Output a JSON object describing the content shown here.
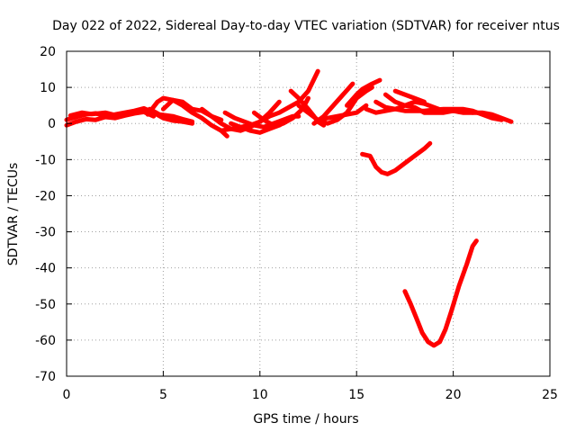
{
  "chart_data": {
    "type": "scatter",
    "title": "Day 022 of 2022, Sidereal Day-to-day VTEC variation (SDTVAR) for receiver ntus",
    "xlabel": "GPS time / hours",
    "ylabel": "SDTVAR / TECUs",
    "xlim": [
      0,
      25
    ],
    "ylim": [
      -70,
      20
    ],
    "xticks": [
      0,
      5,
      10,
      15,
      20,
      25
    ],
    "yticks": [
      -70,
      -60,
      -50,
      -40,
      -30,
      -20,
      -10,
      0,
      10,
      20
    ],
    "grid": true,
    "series_color": "#ff0000",
    "series": [
      {
        "name": "trace-1",
        "points": [
          [
            0,
            1
          ],
          [
            0.5,
            1.8
          ],
          [
            1,
            2.5
          ],
          [
            1.5,
            2.8
          ],
          [
            2,
            2.2
          ],
          [
            2.5,
            2.5
          ],
          [
            3,
            3
          ],
          [
            3.5,
            3.5
          ],
          [
            4,
            4.2
          ],
          [
            4.5,
            3
          ],
          [
            5,
            1.5
          ],
          [
            5.5,
            0.8
          ],
          [
            6,
            0.5
          ],
          [
            6.5,
            0
          ]
        ]
      },
      {
        "name": "trace-2",
        "points": [
          [
            0,
            -0.5
          ],
          [
            0.5,
            0.5
          ],
          [
            1,
            1.2
          ],
          [
            1.5,
            1
          ],
          [
            2,
            1.8
          ],
          [
            2.5,
            1.5
          ],
          [
            3,
            2.2
          ],
          [
            3.5,
            2.8
          ],
          [
            4,
            3.2
          ],
          [
            4.5,
            2
          ]
        ]
      },
      {
        "name": "trace-3",
        "points": [
          [
            0.2,
            2.2
          ],
          [
            0.8,
            3
          ],
          [
            1.3,
            2.6
          ],
          [
            2,
            3
          ],
          [
            2.6,
            2.2
          ],
          [
            3.2,
            2.5
          ]
        ]
      },
      {
        "name": "trace-4",
        "points": [
          [
            4.2,
            2.5
          ],
          [
            4.7,
            6
          ],
          [
            5,
            7
          ],
          [
            5.5,
            6.5
          ],
          [
            6,
            5
          ],
          [
            6.5,
            3
          ],
          [
            7,
            1.5
          ],
          [
            7.5,
            -0.5
          ],
          [
            8,
            -2
          ],
          [
            8.3,
            -3.5
          ]
        ]
      },
      {
        "name": "trace-5",
        "points": [
          [
            4.3,
            4
          ],
          [
            4.8,
            2.5
          ],
          [
            5.5,
            2
          ],
          [
            6,
            1.2
          ],
          [
            6.5,
            0.5
          ]
        ]
      },
      {
        "name": "trace-6",
        "points": [
          [
            5,
            4
          ],
          [
            5.5,
            6.5
          ],
          [
            6,
            6
          ],
          [
            6.5,
            4
          ],
          [
            7,
            3.5
          ],
          [
            7.5,
            2
          ],
          [
            8,
            1
          ]
        ]
      },
      {
        "name": "trace-7",
        "points": [
          [
            7,
            4
          ],
          [
            7.5,
            2
          ],
          [
            8,
            0
          ],
          [
            8.5,
            -1.5
          ],
          [
            9,
            -2
          ],
          [
            9.5,
            -1
          ],
          [
            10,
            0.5
          ],
          [
            10.5,
            3
          ],
          [
            11,
            6
          ]
        ]
      },
      {
        "name": "trace-8",
        "points": [
          [
            8,
            -2
          ],
          [
            8.5,
            -1.5
          ],
          [
            9,
            -1
          ],
          [
            9.5,
            -0.5
          ],
          [
            10,
            0.5
          ],
          [
            10.5,
            2
          ],
          [
            11,
            3
          ],
          [
            11.5,
            4.5
          ],
          [
            12,
            6
          ],
          [
            12.5,
            9
          ],
          [
            13,
            14.5
          ]
        ]
      },
      {
        "name": "trace-9",
        "points": [
          [
            8.2,
            3
          ],
          [
            8.7,
            1.5
          ],
          [
            9.2,
            0.5
          ],
          [
            9.7,
            -0.5
          ],
          [
            10.2,
            -1
          ],
          [
            10.7,
            0
          ],
          [
            11.2,
            1
          ],
          [
            11.7,
            2
          ],
          [
            12,
            2
          ]
        ]
      },
      {
        "name": "trace-10",
        "points": [
          [
            8.5,
            0
          ],
          [
            9,
            -1
          ],
          [
            9.5,
            -2
          ],
          [
            10,
            -2.5
          ],
          [
            10.5,
            -1.5
          ],
          [
            11,
            -0.5
          ],
          [
            11.5,
            1
          ]
        ]
      },
      {
        "name": "trace-11",
        "points": [
          [
            9.7,
            3
          ],
          [
            10.2,
            1
          ],
          [
            10.7,
            -0.5
          ],
          [
            11.2,
            0
          ],
          [
            11.7,
            1.5
          ],
          [
            12.2,
            4
          ],
          [
            12.5,
            7
          ]
        ]
      },
      {
        "name": "trace-12",
        "points": [
          [
            11.6,
            9
          ],
          [
            12,
            7
          ],
          [
            12.5,
            4
          ],
          [
            12.8,
            2
          ],
          [
            13,
            0.5
          ],
          [
            13.3,
            -0.5
          ]
        ]
      },
      {
        "name": "trace-13",
        "points": [
          [
            12,
            5
          ],
          [
            12.5,
            3
          ],
          [
            13,
            1
          ],
          [
            13.5,
            0
          ],
          [
            14,
            1
          ],
          [
            14.5,
            3
          ],
          [
            15,
            7
          ],
          [
            15.5,
            9
          ],
          [
            15.8,
            10
          ]
        ]
      },
      {
        "name": "trace-14",
        "points": [
          [
            12.8,
            0
          ],
          [
            13.3,
            2
          ],
          [
            13.8,
            5
          ],
          [
            14.3,
            8
          ],
          [
            14.8,
            11
          ]
        ]
      },
      {
        "name": "trace-15",
        "points": [
          [
            13,
            1
          ],
          [
            13.5,
            1.5
          ],
          [
            14,
            2
          ],
          [
            14.5,
            2.5
          ],
          [
            15,
            3
          ],
          [
            15.5,
            5
          ]
        ]
      },
      {
        "name": "trace-16",
        "points": [
          [
            14.5,
            5
          ],
          [
            15,
            8
          ],
          [
            15.3,
            9.5
          ],
          [
            15.8,
            11
          ],
          [
            16.2,
            12
          ]
        ]
      },
      {
        "name": "trace-17",
        "points": [
          [
            15.5,
            4
          ],
          [
            16,
            3
          ],
          [
            16.5,
            3.5
          ],
          [
            17,
            4
          ],
          [
            17.5,
            5
          ],
          [
            18,
            6
          ],
          [
            18.5,
            5.5
          ],
          [
            19,
            4.5
          ],
          [
            19.5,
            3.5
          ],
          [
            20,
            3.5
          ],
          [
            20.5,
            3
          ],
          [
            21,
            3
          ],
          [
            21.5,
            3
          ],
          [
            22,
            2.5
          ],
          [
            22.5,
            1.5
          ],
          [
            23,
            0.5
          ]
        ]
      },
      {
        "name": "trace-18",
        "points": [
          [
            16,
            6
          ],
          [
            16.5,
            4.5
          ],
          [
            17,
            4
          ],
          [
            17.5,
            3.5
          ],
          [
            18,
            3.5
          ],
          [
            18.5,
            3.5
          ],
          [
            19,
            3.8
          ],
          [
            19.5,
            4
          ],
          [
            20,
            4
          ],
          [
            20.5,
            4
          ],
          [
            21,
            3.5
          ],
          [
            21.5,
            2.5
          ],
          [
            22,
            1.5
          ],
          [
            22.5,
            1
          ]
        ]
      },
      {
        "name": "trace-19",
        "points": [
          [
            16.5,
            8
          ],
          [
            17,
            6
          ],
          [
            17.5,
            5
          ],
          [
            18,
            4.5
          ],
          [
            18.5,
            3
          ],
          [
            19,
            3
          ],
          [
            19.5,
            3
          ],
          [
            20,
            3.5
          ],
          [
            20.5,
            3.5
          ],
          [
            21,
            3
          ]
        ]
      },
      {
        "name": "trace-20",
        "points": [
          [
            17,
            9
          ],
          [
            17.5,
            8
          ],
          [
            18,
            7
          ],
          [
            18.5,
            6
          ]
        ]
      },
      {
        "name": "trace-21",
        "points": [
          [
            15.3,
            -8.5
          ],
          [
            15.7,
            -9
          ],
          [
            16,
            -12
          ],
          [
            16.3,
            -13.5
          ],
          [
            16.6,
            -14
          ],
          [
            17,
            -13
          ],
          [
            17.5,
            -11
          ],
          [
            18,
            -9
          ],
          [
            18.5,
            -7
          ],
          [
            18.8,
            -5.5
          ]
        ]
      },
      {
        "name": "trace-22",
        "points": [
          [
            17.5,
            -46.5
          ],
          [
            17.8,
            -50
          ],
          [
            18.1,
            -54
          ],
          [
            18.4,
            -58
          ],
          [
            18.7,
            -60.5
          ],
          [
            19,
            -61.5
          ],
          [
            19.3,
            -60.5
          ],
          [
            19.6,
            -57
          ],
          [
            19.9,
            -52
          ],
          [
            20.3,
            -45
          ],
          [
            20.7,
            -39
          ],
          [
            21,
            -34
          ],
          [
            21.2,
            -32.5
          ]
        ]
      }
    ]
  }
}
